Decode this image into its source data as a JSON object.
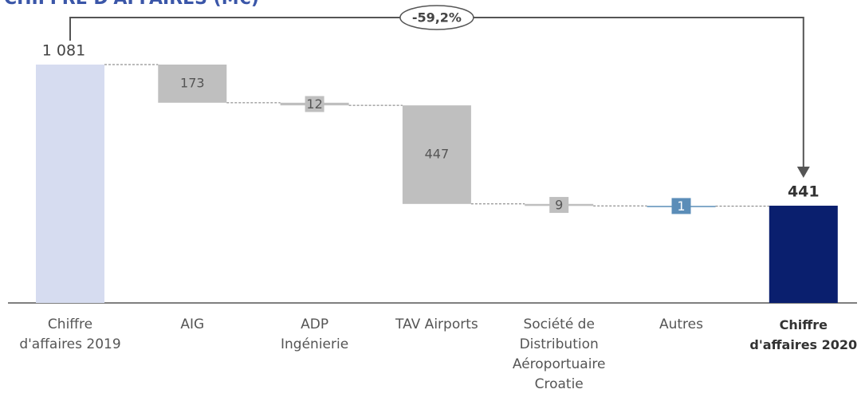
{
  "chart_data": {
    "type": "waterfall",
    "title": "CHIFFRE D'AFFAIRES (M€)",
    "categories": [
      "Chiffre\nd'affaires 2019",
      "AIG",
      "ADP\nIngénierie",
      "TAV Airports",
      "Société de\nDistribution\nAéroportuaire\nCroatie",
      "Autres",
      "Chiffre\nd'affaires 2020"
    ],
    "values": [
      1081,
      173,
      12,
      447,
      9,
      1,
      441
    ],
    "value_labels": [
      "1 081",
      "173",
      "12",
      "447",
      "9",
      "1",
      "441"
    ],
    "colors": [
      "#d6dcf0",
      "#bfbfbf",
      "#bfbfbf",
      "#bfbfbf",
      "#bfbfbf",
      "#5b8db8",
      "#0a1f6e"
    ],
    "ylim": [
      0,
      1081
    ],
    "annotation": "-59,2%"
  }
}
